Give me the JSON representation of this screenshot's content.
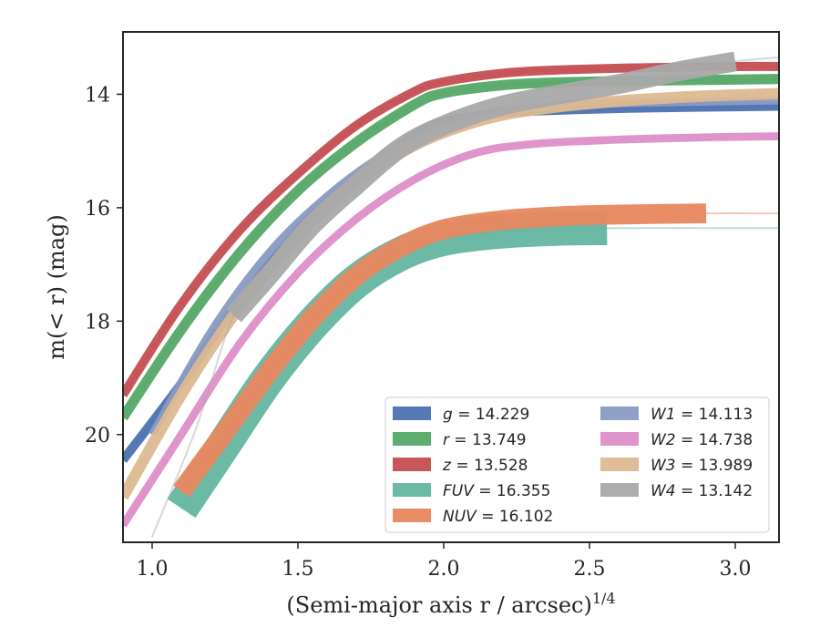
{
  "chart_data": {
    "type": "line",
    "xlabel": "(Semi-major axis r / arcsec)",
    "xlabel_power": "1/4",
    "ylabel": "m(< r) (mag)",
    "xlim": [
      0.9,
      3.15
    ],
    "ylim": [
      21.9,
      12.9
    ],
    "y_inverted": true,
    "x_ticks": [
      1.0,
      1.5,
      2.0,
      2.5,
      3.0
    ],
    "x_tick_labels": [
      "1.0",
      "1.5",
      "2.0",
      "2.5",
      "3.0"
    ],
    "y_ticks": [
      14,
      16,
      18,
      20
    ],
    "y_tick_labels": [
      "14",
      "16",
      "18",
      "20"
    ],
    "grid": false,
    "legend_position": "lower-right",
    "series": [
      {
        "name": "g",
        "value": "14.229",
        "color": "#4c72b0",
        "x": [
          0.9,
          1.1,
          1.3,
          1.5,
          1.7,
          1.9,
          2.0,
          2.2,
          2.4,
          2.7,
          3.0,
          3.15
        ],
        "y": [
          20.45,
          19.1,
          17.65,
          16.4,
          15.45,
          14.72,
          14.48,
          14.33,
          14.28,
          14.24,
          14.22,
          14.21
        ],
        "solid_xmax": 3.15,
        "band": 0.16
      },
      {
        "name": "r",
        "value": "13.749",
        "color": "#55a868",
        "x": [
          0.9,
          1.1,
          1.3,
          1.5,
          1.7,
          1.9,
          2.0,
          2.2,
          2.4,
          2.7,
          3.0,
          3.15
        ],
        "y": [
          19.7,
          18.15,
          16.8,
          15.7,
          14.85,
          14.18,
          13.98,
          13.84,
          13.79,
          13.76,
          13.74,
          13.73
        ],
        "solid_xmax": 3.15,
        "band": 0.18
      },
      {
        "name": "z",
        "value": "13.528",
        "color": "#c44e52",
        "x": [
          0.9,
          1.1,
          1.3,
          1.5,
          1.7,
          1.9,
          2.0,
          2.2,
          2.4,
          2.7,
          3.0,
          3.15
        ],
        "y": [
          19.3,
          17.7,
          16.4,
          15.4,
          14.55,
          13.95,
          13.78,
          13.63,
          13.57,
          13.53,
          13.51,
          13.51
        ],
        "solid_xmax": 3.15,
        "band": 0.16
      },
      {
        "name": "FUV",
        "value": "16.355",
        "color": "#64b5a0",
        "x": [
          1.1,
          1.25,
          1.4,
          1.55,
          1.7,
          1.85,
          2.0,
          2.2,
          2.4,
          2.56,
          2.8,
          3.15
        ],
        "y": [
          21.3,
          20.15,
          19.0,
          18.05,
          17.3,
          16.82,
          16.55,
          16.42,
          16.37,
          16.36,
          16.36,
          16.36
        ],
        "solid_xmax": 2.56,
        "band": 0.6
      },
      {
        "name": "NUV",
        "value": "16.102",
        "color": "#e8875f",
        "x": [
          1.1,
          1.25,
          1.4,
          1.55,
          1.7,
          1.85,
          2.0,
          2.2,
          2.4,
          2.6,
          2.9,
          3.15
        ],
        "y": [
          21.0,
          19.95,
          18.9,
          17.95,
          17.2,
          16.7,
          16.38,
          16.22,
          16.15,
          16.12,
          16.1,
          16.1
        ],
        "solid_xmax": 2.9,
        "band": 0.35
      },
      {
        "name": "W1",
        "value": "14.113",
        "color": "#8a9ac2",
        "x": [
          1.0,
          1.2,
          1.4,
          1.6,
          1.8,
          2.0,
          2.2,
          2.5,
          2.8,
          3.15
        ],
        "y": [
          20.0,
          18.2,
          16.8,
          15.8,
          15.05,
          14.55,
          14.3,
          14.18,
          14.14,
          14.11
        ],
        "solid_xmax": 3.15,
        "band": 0.14
      },
      {
        "name": "W2",
        "value": "14.738",
        "color": "#dd8fc8",
        "x": [
          0.9,
          1.1,
          1.3,
          1.5,
          1.7,
          1.9,
          2.1,
          2.3,
          2.6,
          2.9,
          3.15
        ],
        "y": [
          21.6,
          20.0,
          18.4,
          17.15,
          16.2,
          15.5,
          15.05,
          14.88,
          14.8,
          14.76,
          14.74
        ],
        "solid_xmax": 3.15,
        "band": 0.14
      },
      {
        "name": "W3",
        "value": "13.989",
        "color": "#dcb991",
        "x": [
          0.9,
          1.1,
          1.3,
          1.5,
          1.7,
          1.9,
          2.1,
          2.3,
          2.6,
          2.9,
          3.15
        ],
        "y": [
          21.1,
          19.3,
          17.75,
          16.5,
          15.55,
          14.9,
          14.5,
          14.28,
          14.12,
          14.03,
          13.99
        ],
        "solid_xmax": 3.15,
        "band": 0.2
      },
      {
        "name": "W4",
        "value": "13.142",
        "color": "#a9a9a9",
        "x": [
          1.0,
          1.15,
          1.28,
          1.4,
          1.55,
          1.7,
          1.85,
          2.0,
          2.2,
          2.4,
          2.6,
          2.8,
          3.0,
          3.15
        ],
        "y": [
          21.8,
          19.9,
          17.9,
          17.2,
          16.3,
          15.6,
          14.95,
          14.55,
          14.2,
          14.0,
          13.82,
          13.6,
          13.42,
          13.35
        ],
        "solid_xmin": 1.28,
        "solid_xmax": 3.0,
        "band": 0.35
      }
    ]
  }
}
